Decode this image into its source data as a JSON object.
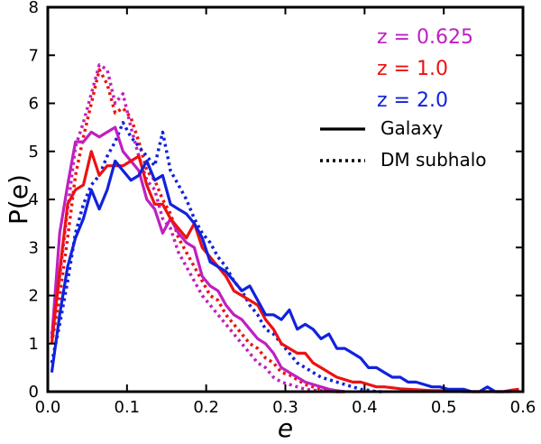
{
  "chart_data": {
    "type": "line",
    "title": "",
    "xlabel": "e",
    "ylabel": "P(e)",
    "xlim": [
      0.0,
      0.6
    ],
    "ylim": [
      0,
      8
    ],
    "xticks": [
      "0.0",
      "0.1",
      "0.2",
      "0.3",
      "0.4",
      "0.5",
      "0.6"
    ],
    "yticks": [
      "0",
      "1",
      "2",
      "3",
      "4",
      "5",
      "6",
      "7",
      "8"
    ],
    "grid": false,
    "legend_position": "top-right",
    "legend": {
      "redshifts": [
        {
          "text": "z = 0.625",
          "color": "#c020c0"
        },
        {
          "text": "z = 1.0",
          "color": "#ee1111"
        },
        {
          "text": "z = 2.0",
          "color": "#1122dd"
        }
      ],
      "styles": [
        {
          "text": "Galaxy",
          "style": "solid"
        },
        {
          "text": "DM subhalo",
          "style": "dotted"
        }
      ]
    },
    "series": [
      {
        "name": "z = 0.625 DM subhalo",
        "color": "#c020c0",
        "style": "dotted",
        "x": [
          0.005,
          0.015,
          0.025,
          0.035,
          0.045,
          0.055,
          0.065,
          0.075,
          0.085,
          0.095,
          0.105,
          0.115,
          0.125,
          0.135,
          0.145,
          0.155,
          0.165,
          0.175,
          0.185,
          0.195,
          0.205,
          0.215,
          0.225,
          0.235,
          0.245,
          0.255,
          0.265,
          0.275,
          0.285,
          0.295,
          0.305,
          0.315,
          0.325,
          0.335,
          0.345,
          0.355,
          0.365,
          0.375
        ],
        "y": [
          1.2,
          2.4,
          3.8,
          5.1,
          5.6,
          6.2,
          6.8,
          6.7,
          6.0,
          6.2,
          5.5,
          4.9,
          4.4,
          4.2,
          3.6,
          3.4,
          2.9,
          2.6,
          2.3,
          2.0,
          1.8,
          1.6,
          1.4,
          1.2,
          1.0,
          0.8,
          0.6,
          0.5,
          0.3,
          0.2,
          0.15,
          0.1,
          0.05,
          0.03,
          0.02,
          0.01,
          0.0,
          0.0
        ]
      },
      {
        "name": "z = 1.0 DM subhalo",
        "color": "#ee1111",
        "style": "dotted",
        "x": [
          0.005,
          0.015,
          0.025,
          0.035,
          0.045,
          0.055,
          0.065,
          0.075,
          0.085,
          0.095,
          0.105,
          0.115,
          0.125,
          0.135,
          0.145,
          0.155,
          0.165,
          0.175,
          0.185,
          0.195,
          0.205,
          0.215,
          0.225,
          0.235,
          0.245,
          0.255,
          0.265,
          0.275,
          0.285,
          0.295,
          0.305,
          0.315,
          0.325,
          0.335,
          0.345,
          0.355,
          0.365,
          0.375
        ],
        "y": [
          1.0,
          2.0,
          3.2,
          4.5,
          5.3,
          6.0,
          6.7,
          6.4,
          5.8,
          5.9,
          5.7,
          5.2,
          4.6,
          4.4,
          4.0,
          3.7,
          3.2,
          2.9,
          2.6,
          2.3,
          2.0,
          1.9,
          1.6,
          1.4,
          1.2,
          1.0,
          0.9,
          0.7,
          0.6,
          0.4,
          0.35,
          0.25,
          0.15,
          0.1,
          0.05,
          0.03,
          0.0,
          0.0
        ]
      },
      {
        "name": "z = 2.0 DM subhalo",
        "color": "#1122dd",
        "style": "dotted",
        "x": [
          0.005,
          0.015,
          0.025,
          0.035,
          0.045,
          0.055,
          0.065,
          0.075,
          0.085,
          0.095,
          0.105,
          0.115,
          0.125,
          0.135,
          0.145,
          0.155,
          0.165,
          0.175,
          0.185,
          0.195,
          0.205,
          0.215,
          0.225,
          0.235,
          0.245,
          0.255,
          0.265,
          0.275,
          0.285,
          0.295,
          0.305,
          0.315,
          0.325,
          0.335,
          0.345,
          0.355,
          0.365,
          0.375,
          0.385,
          0.395,
          0.405,
          0.415,
          0.425
        ],
        "y": [
          0.6,
          1.4,
          2.3,
          3.3,
          3.9,
          4.3,
          4.5,
          4.9,
          5.2,
          5.6,
          5.3,
          5.1,
          4.9,
          4.7,
          5.4,
          4.6,
          4.3,
          4.0,
          3.6,
          3.3,
          3.1,
          2.8,
          2.6,
          2.3,
          2.1,
          1.8,
          1.6,
          1.3,
          1.2,
          1.0,
          0.8,
          0.6,
          0.5,
          0.4,
          0.3,
          0.25,
          0.2,
          0.15,
          0.1,
          0.05,
          0.03,
          0.0,
          0.0
        ]
      },
      {
        "name": "z = 0.625 Galaxy",
        "color": "#c020c0",
        "style": "solid",
        "x": [
          0.005,
          0.015,
          0.025,
          0.035,
          0.045,
          0.055,
          0.065,
          0.075,
          0.085,
          0.095,
          0.105,
          0.115,
          0.125,
          0.135,
          0.145,
          0.155,
          0.165,
          0.175,
          0.185,
          0.195,
          0.205,
          0.215,
          0.225,
          0.235,
          0.245,
          0.255,
          0.265,
          0.275,
          0.285,
          0.295,
          0.305,
          0.315,
          0.325,
          0.335,
          0.345,
          0.355,
          0.365,
          0.375
        ],
        "y": [
          1.1,
          3.3,
          4.3,
          5.2,
          5.2,
          5.4,
          5.3,
          5.4,
          5.5,
          5.0,
          4.8,
          4.6,
          4.0,
          3.8,
          3.3,
          3.6,
          3.3,
          3.1,
          3.0,
          2.4,
          2.2,
          2.1,
          1.8,
          1.6,
          1.5,
          1.3,
          1.1,
          1.0,
          0.8,
          0.5,
          0.4,
          0.3,
          0.2,
          0.15,
          0.1,
          0.05,
          0.02,
          0.0
        ]
      },
      {
        "name": "z = 1.0 Galaxy",
        "color": "#ee1111",
        "style": "solid",
        "x": [
          0.005,
          0.015,
          0.025,
          0.035,
          0.045,
          0.055,
          0.065,
          0.075,
          0.085,
          0.095,
          0.105,
          0.115,
          0.125,
          0.135,
          0.145,
          0.155,
          0.165,
          0.175,
          0.185,
          0.195,
          0.205,
          0.215,
          0.225,
          0.235,
          0.245,
          0.255,
          0.265,
          0.275,
          0.285,
          0.295,
          0.305,
          0.315,
          0.325,
          0.335,
          0.345,
          0.355,
          0.365,
          0.375,
          0.385,
          0.395,
          0.405,
          0.415,
          0.425,
          0.435,
          0.445,
          0.455,
          0.465,
          0.475,
          0.485,
          0.495,
          0.505,
          0.515,
          0.525,
          0.535,
          0.545,
          0.555,
          0.565,
          0.575,
          0.585,
          0.595
        ],
        "y": [
          1.0,
          2.5,
          3.9,
          4.2,
          4.3,
          5.0,
          4.5,
          4.7,
          4.7,
          4.7,
          4.8,
          4.9,
          4.3,
          3.9,
          3.9,
          3.6,
          3.4,
          3.2,
          3.5,
          3.0,
          2.8,
          2.6,
          2.4,
          2.1,
          2.0,
          1.9,
          1.8,
          1.5,
          1.3,
          1.0,
          0.9,
          0.8,
          0.8,
          0.6,
          0.5,
          0.4,
          0.3,
          0.25,
          0.2,
          0.2,
          0.15,
          0.1,
          0.1,
          0.08,
          0.06,
          0.05,
          0.04,
          0.03,
          0.02,
          0.02,
          0.01,
          0.01,
          0.0,
          0.0,
          0.0,
          0.0,
          0.0,
          0.0,
          0.03,
          0.05
        ]
      },
      {
        "name": "z = 2.0 Galaxy",
        "color": "#1122dd",
        "style": "solid",
        "x": [
          0.005,
          0.015,
          0.025,
          0.035,
          0.045,
          0.055,
          0.065,
          0.075,
          0.085,
          0.095,
          0.105,
          0.115,
          0.125,
          0.135,
          0.145,
          0.155,
          0.165,
          0.175,
          0.185,
          0.195,
          0.205,
          0.215,
          0.225,
          0.235,
          0.245,
          0.255,
          0.265,
          0.275,
          0.285,
          0.295,
          0.305,
          0.315,
          0.325,
          0.335,
          0.345,
          0.355,
          0.365,
          0.375,
          0.385,
          0.395,
          0.405,
          0.415,
          0.425,
          0.435,
          0.445,
          0.455,
          0.465,
          0.475,
          0.485,
          0.495,
          0.505,
          0.515,
          0.525,
          0.535,
          0.545,
          0.555,
          0.565,
          0.575,
          0.585
        ],
        "y": [
          0.4,
          1.6,
          2.6,
          3.2,
          3.6,
          4.2,
          3.8,
          4.2,
          4.8,
          4.6,
          4.4,
          4.5,
          4.8,
          4.4,
          4.5,
          3.9,
          3.8,
          3.7,
          3.5,
          3.2,
          2.7,
          2.6,
          2.5,
          2.3,
          2.1,
          2.2,
          1.9,
          1.6,
          1.6,
          1.5,
          1.7,
          1.3,
          1.4,
          1.3,
          1.1,
          1.2,
          0.9,
          0.9,
          0.8,
          0.7,
          0.5,
          0.5,
          0.4,
          0.3,
          0.3,
          0.2,
          0.2,
          0.15,
          0.1,
          0.1,
          0.05,
          0.05,
          0.05,
          0.0,
          0.0,
          0.1,
          0.0,
          0.0,
          0.0
        ]
      }
    ]
  }
}
